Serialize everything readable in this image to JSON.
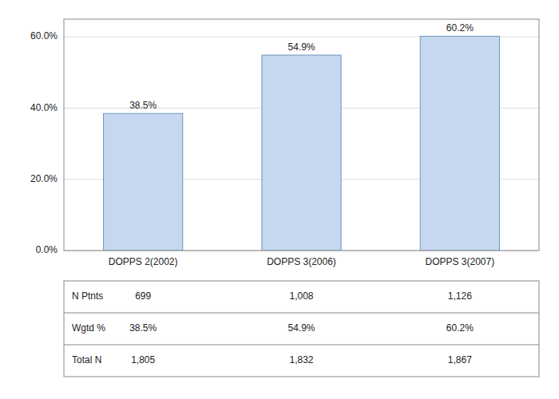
{
  "chart_data": {
    "type": "bar",
    "categories": [
      "DOPPS 2(2002)",
      "DOPPS 3(2006)",
      "DOPPS 3(2007)"
    ],
    "values": [
      38.5,
      54.9,
      60.2
    ],
    "value_labels": [
      "38.5%",
      "54.9%",
      "60.2%"
    ],
    "data_labels": true,
    "color": "#c5d8f0",
    "ylim": [
      0,
      65
    ],
    "yticks": [
      {
        "value": 0,
        "label": "0.0%"
      },
      {
        "value": 20,
        "label": "20.0%"
      },
      {
        "value": 40,
        "label": "40.0%"
      },
      {
        "value": 60,
        "label": "60.0%"
      }
    ],
    "grid": true,
    "table": [
      {
        "label": "N Ptnts",
        "values": [
          "699",
          "1,008",
          "1,126"
        ]
      },
      {
        "label": "Wgtd %",
        "values": [
          "38.5%",
          "54.9%",
          "60.2%"
        ]
      },
      {
        "label": "Total N",
        "values": [
          "1,805",
          "1,832",
          "1,867"
        ]
      }
    ]
  }
}
